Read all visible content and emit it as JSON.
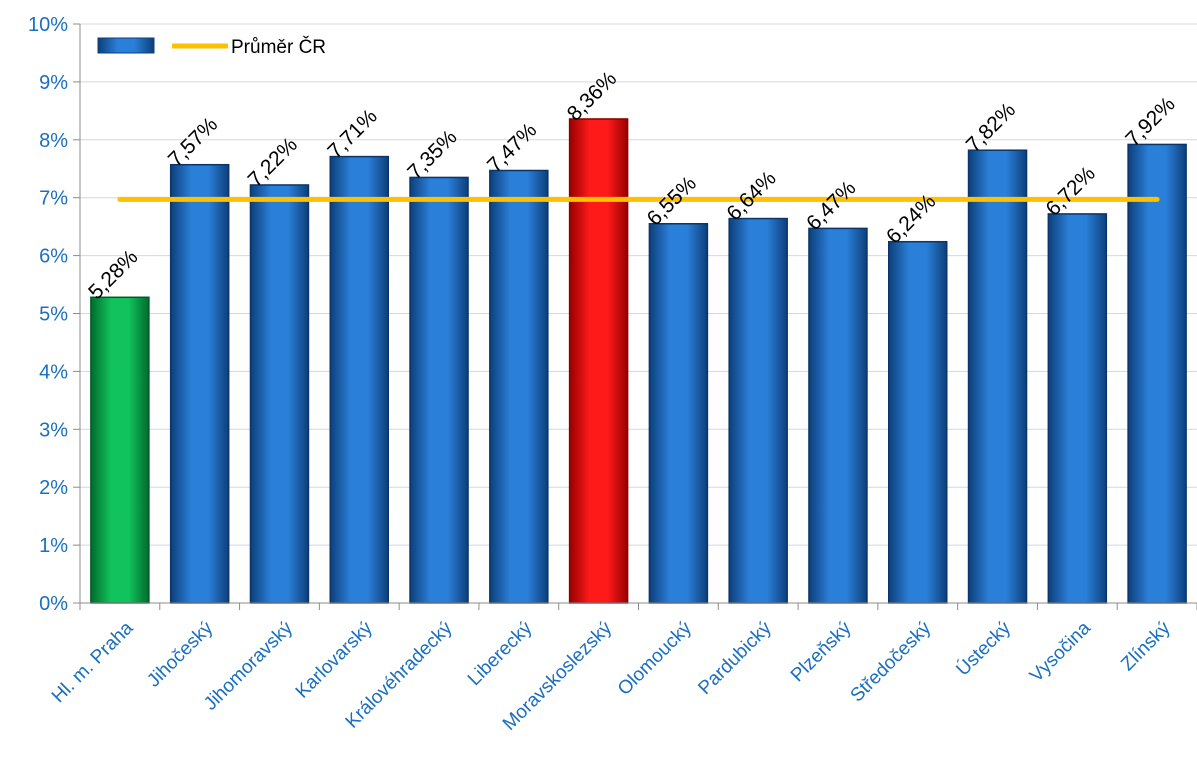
{
  "chart_data": {
    "type": "bar",
    "categories": [
      "Hl. m. Praha",
      "Jihočeský",
      "Jihomoravský",
      "Karlovarský",
      "Královéhradecký",
      "Liberecký",
      "Moravskoslezský",
      "Olomoucký",
      "Pardubický",
      "Plzeňský",
      "Středočeský",
      "Ústecký",
      "Vysočina",
      "Zlínský"
    ],
    "values": [
      5.28,
      7.57,
      7.22,
      7.71,
      7.35,
      7.47,
      8.36,
      6.55,
      6.64,
      6.47,
      6.24,
      7.82,
      6.72,
      7.92
    ],
    "data_labels": [
      "5,28%",
      "7,57%",
      "7,22%",
      "7,71%",
      "7,35%",
      "7,47%",
      "8,36%",
      "6,55%",
      "6,64%",
      "6,47%",
      "6,24%",
      "7,82%",
      "6,72%",
      "7,92%"
    ],
    "bar_colors": [
      "#00b050",
      "#1f6fc5",
      "#1f6fc5",
      "#1f6fc5",
      "#1f6fc5",
      "#1f6fc5",
      "#ff0000",
      "#1f6fc5",
      "#1f6fc5",
      "#1f6fc5",
      "#1f6fc5",
      "#1f6fc5",
      "#1f6fc5",
      "#1f6fc5"
    ],
    "average": {
      "name": "Průměr ČR",
      "value": 6.97,
      "color": "#ffc000"
    },
    "legend": {
      "placement": "top-left",
      "series_color": "#1f6fc5"
    },
    "ylim": [
      0,
      10
    ],
    "yticks": [
      0,
      1,
      2,
      3,
      4,
      5,
      6,
      7,
      8,
      9,
      10
    ],
    "ytick_labels": [
      "0%",
      "1%",
      "2%",
      "3%",
      "4%",
      "5%",
      "6%",
      "7%",
      "8%",
      "9%",
      "10%"
    ],
    "grid": true,
    "title": "",
    "xlabel": "",
    "ylabel": ""
  }
}
